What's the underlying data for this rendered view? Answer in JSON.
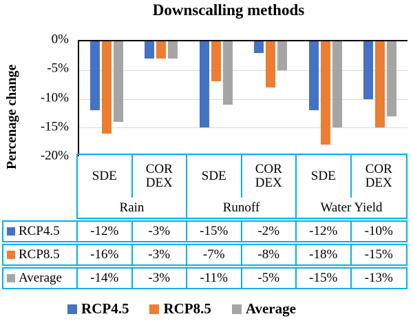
{
  "chart_data": {
    "type": "bar",
    "title": "Downscalling methods",
    "ylabel": "Percenage change",
    "xlabel": "",
    "ylim": [
      -20,
      0
    ],
    "yticks": [
      "0%",
      "-5%",
      "-10%",
      "-15%",
      "-20%"
    ],
    "grid": true,
    "legend_position": "bottom",
    "group_level1": [
      "Rain",
      "Runoff",
      "Water Yield"
    ],
    "group_level2": [
      "SDE",
      "CORDEX"
    ],
    "categories": [
      "Rain SDE",
      "Rain CORDEX",
      "Runoff SDE",
      "Runoff CORDEX",
      "Water Yield SDE",
      "Water Yield CORDEX"
    ],
    "series": [
      {
        "name": "RCP4.5",
        "color": "#4472C4",
        "values": [
          -12,
          -3,
          -15,
          -2,
          -12,
          -10
        ]
      },
      {
        "name": "RCP8.5",
        "color": "#ED7D31",
        "values": [
          -16,
          -3,
          -7,
          -8,
          -18,
          -15
        ]
      },
      {
        "name": "Average",
        "color": "#A5A5A5",
        "values": [
          -14,
          -3,
          -11,
          -5,
          -15,
          -13
        ]
      }
    ]
  },
  "table": {
    "method_headers": [
      "SDE",
      "COR DEX"
    ],
    "groups": [
      "Rain",
      "Runoff",
      "Water Yield"
    ],
    "rows": [
      {
        "label": "RCP4.5",
        "swatch_color": "#4472C4",
        "values": [
          "-12%",
          "-3%",
          "-15%",
          "-2%",
          "-12%",
          "-10%"
        ]
      },
      {
        "label": "RCP8.5",
        "swatch_color": "#ED7D31",
        "values": [
          "-16%",
          "-3%",
          "-7%",
          "-8%",
          "-18%",
          "-15%"
        ]
      },
      {
        "label": "Average",
        "swatch_color": "#A5A5A5",
        "values": [
          "-14%",
          "-3%",
          "-11%",
          "-5%",
          "-15%",
          "-13%"
        ]
      }
    ]
  },
  "legend": {
    "items": [
      {
        "label": "RCP4.5",
        "color": "#4472C4"
      },
      {
        "label": "RCP8.5",
        "color": "#ED7D31"
      },
      {
        "label": "Average",
        "color": "#A5A5A5"
      }
    ]
  },
  "colors": {
    "table_border": "#00B0F0",
    "gridline": "#D9D9D9",
    "axis": "#000000",
    "bar_blue": "#4472C4",
    "bar_orange": "#ED7D31",
    "bar_gray": "#A5A5A5"
  }
}
